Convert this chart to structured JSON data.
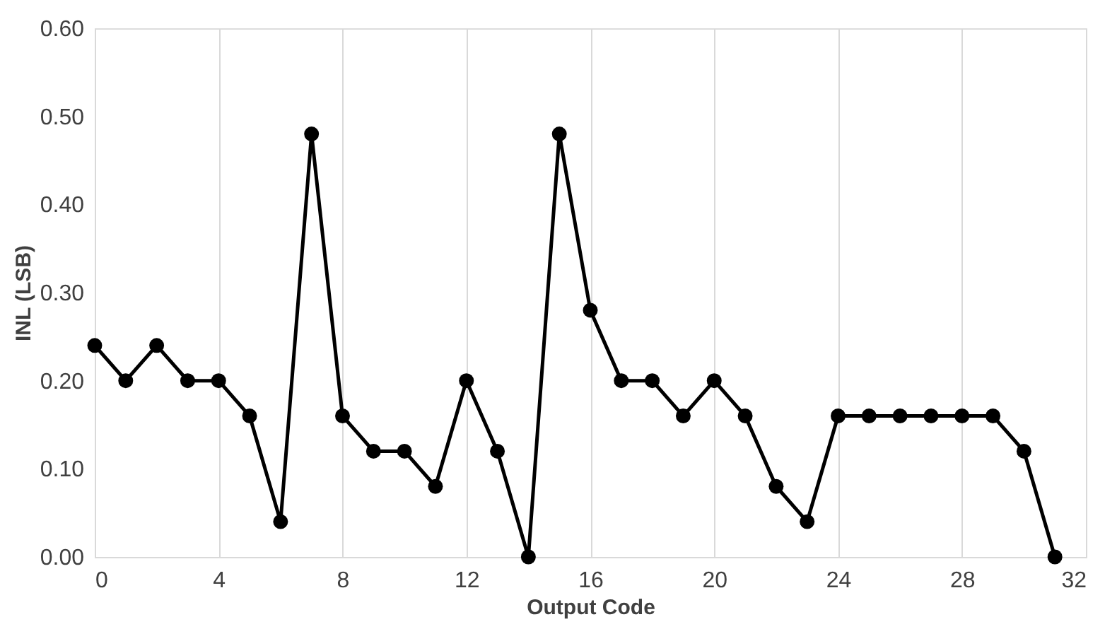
{
  "chart_data": {
    "type": "line",
    "xlabel": "Output Code",
    "ylabel": "INL (LSB)",
    "x": [
      0,
      1,
      2,
      3,
      4,
      5,
      6,
      7,
      8,
      9,
      10,
      11,
      12,
      13,
      14,
      15,
      16,
      17,
      18,
      19,
      20,
      21,
      22,
      23,
      24,
      25,
      26,
      27,
      28,
      29,
      30,
      31
    ],
    "series": [
      {
        "color": "#000000",
        "values": [
          0.24,
          0.2,
          0.24,
          0.2,
          0.2,
          0.16,
          0.04,
          0.48,
          0.16,
          0.12,
          0.12,
          0.08,
          0.2,
          0.12,
          0.0,
          0.48,
          0.28,
          0.2,
          0.2,
          0.16,
          0.2,
          0.16,
          0.08,
          0.04,
          0.16,
          0.16,
          0.16,
          0.16,
          0.16,
          0.16,
          0.12,
          0.0
        ]
      }
    ],
    "xlim": [
      0,
      32
    ],
    "xticks": [
      0,
      4,
      8,
      12,
      16,
      20,
      24,
      28,
      32
    ],
    "ylim": [
      0,
      0.6
    ],
    "yticks": [
      {
        "value": 0,
        "label": "0.00"
      },
      {
        "value": 0.1,
        "label": "0.10"
      },
      {
        "value": 0.2,
        "label": "0.20"
      },
      {
        "value": 0.3,
        "label": "0.30"
      },
      {
        "value": 0.4,
        "label": "0.40"
      },
      {
        "value": 0.5,
        "label": "0.50"
      },
      {
        "value": 0.6,
        "label": "0.60"
      }
    ],
    "grid": "x",
    "marker": "circle",
    "line_style": "solid"
  }
}
